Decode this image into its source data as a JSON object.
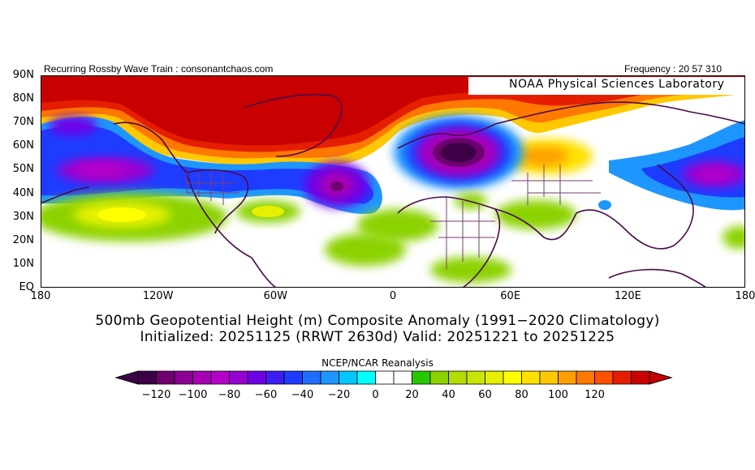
{
  "header": {
    "left": "Recurring Rossby Wave Train : consonantchaos.com",
    "right": "Frequency : 20 57 310",
    "watermark": "NOAA Physical Sciences Laboratory"
  },
  "axes": {
    "y_ticks": [
      "90N",
      "80N",
      "70N",
      "60N",
      "50N",
      "40N",
      "30N",
      "20N",
      "10N",
      "EQ"
    ],
    "x_ticks": [
      "180",
      "120W",
      "60W",
      "0",
      "60E",
      "120E",
      "180"
    ]
  },
  "title": {
    "line1": "500mb Geopotential Height (m) Composite Anomaly (1991−2020 Climatology)",
    "line2": "Initialized: 20251125 (RRWT 2630d) Valid: 20251221 to 20251225"
  },
  "colorbar": {
    "label": "NCEP/NCAR Reanalysis",
    "ticks": [
      "−120",
      "−100",
      "−80",
      "−60",
      "−40",
      "−20",
      "0",
      "20",
      "40",
      "60",
      "80",
      "100",
      "120"
    ],
    "colors": [
      "#3d0048",
      "#6e0070",
      "#8c0094",
      "#a800b4",
      "#b400c8",
      "#9600d2",
      "#6e00e6",
      "#3c1ef0",
      "#1e3cff",
      "#1e6eff",
      "#1e96ff",
      "#00c8ff",
      "#00ffff",
      "#ffffff",
      "#ffffff",
      "#28c800",
      "#8cd200",
      "#b4dc00",
      "#c8e600",
      "#e6f000",
      "#ffff00",
      "#ffe100",
      "#ffc800",
      "#ffa000",
      "#ff7800",
      "#ff5000",
      "#e61e00",
      "#c80000"
    ]
  },
  "map_colors": {
    "land": "#4a0a4a",
    "grid": "#7a3c7a"
  }
}
